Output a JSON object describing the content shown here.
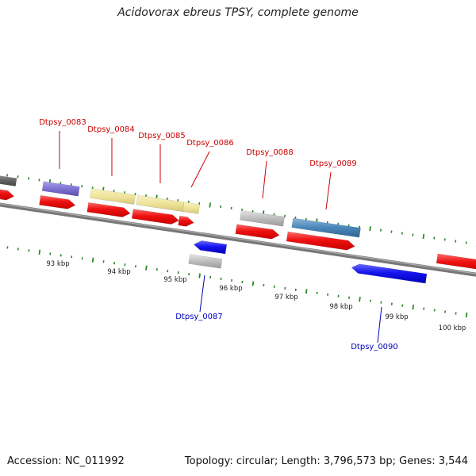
{
  "title": "Acidovorax ebreus TPSY, complete genome",
  "footer": {
    "accession": "Accession: NC_011992",
    "summary": "Topology: circular; Length: 3,796,573 bp; Genes: 3,544"
  },
  "scale_labels": [
    "93 kbp",
    "94 kbp",
    "95 kbp",
    "96 kbp",
    "97 kbp",
    "98 kbp",
    "99 kbp",
    "100 kbp"
  ],
  "gene_labels": {
    "dtpsy_0083": "Dtpsy_0083",
    "dtpsy_0084": "Dtpsy_0084",
    "dtpsy_0085": "Dtpsy_0085",
    "dtpsy_0086": "Dtpsy_0086",
    "dtpsy_0087": "Dtpsy_0087",
    "dtpsy_0088": "Dtpsy_0088",
    "dtpsy_0089": "Dtpsy_0089",
    "dtpsy_0090": "Dtpsy_0090"
  },
  "colors": {
    "forward_cds": "#e81010",
    "reverse_cds": "#1010e0",
    "forward_label": "#cc0000",
    "reverse_label": "#0000bb",
    "tick": "#2a8a2a",
    "backbone": "#808080",
    "yellow_feature": "#efe49a",
    "steel_feature": "#4a86b8",
    "purple_feature": "#7f72d0",
    "gray_feature": "#bdbdbd"
  }
}
